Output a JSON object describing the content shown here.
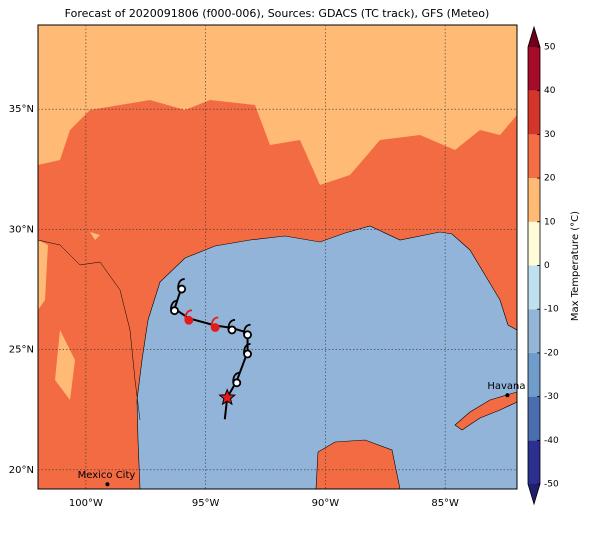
{
  "title": "Forecast of 2020091806 (f000-006), Sources: GDACS (TC track), GFS (Meteo)",
  "map": {
    "lon_range": [
      -102,
      -82
    ],
    "lat_range": [
      19.2,
      38.5
    ],
    "lon_ticks": [
      {
        "value": -100,
        "label": "100°W"
      },
      {
        "value": -95,
        "label": "95°W"
      },
      {
        "value": -90,
        "label": "90°W"
      },
      {
        "value": -85,
        "label": "85°W"
      }
    ],
    "lat_ticks": [
      {
        "value": 35,
        "label": "35°N"
      },
      {
        "value": 30,
        "label": "30°N"
      },
      {
        "value": 25,
        "label": "25°N"
      },
      {
        "value": 20,
        "label": "20°N"
      }
    ],
    "grid": true
  },
  "cities": [
    {
      "name": "Havana",
      "lon": -82.4,
      "lat": 23.1
    },
    {
      "name": "Mexico City",
      "lon": -99.1,
      "lat": 19.4
    }
  ],
  "track": [
    {
      "lon": -94.2,
      "lat": 22.1,
      "kind": "track"
    },
    {
      "lon": -94.1,
      "lat": 23.0,
      "kind": "current"
    },
    {
      "lon": -93.7,
      "lat": 23.7,
      "kind": "storm"
    },
    {
      "lon": -93.25,
      "lat": 24.9,
      "kind": "storm"
    },
    {
      "lon": -93.25,
      "lat": 25.7,
      "kind": "storm"
    },
    {
      "lon": -93.9,
      "lat": 25.9,
      "kind": "storm"
    },
    {
      "lon": -94.6,
      "lat": 26.0,
      "kind": "hurricane"
    },
    {
      "lon": -95.7,
      "lat": 26.3,
      "kind": "hurricane"
    },
    {
      "lon": -96.3,
      "lat": 26.7,
      "kind": "storm"
    },
    {
      "lon": -96.0,
      "lat": 27.6,
      "kind": "storm"
    }
  ],
  "colorbar": {
    "label": "Max Temperature (°C)",
    "lim": [
      -50,
      50
    ],
    "ticks": [
      50,
      40,
      30,
      20,
      10,
      0,
      -10,
      -20,
      -30,
      -40,
      -50
    ],
    "colors": [
      "#2c2f8f",
      "#4a6db0",
      "#6f9ccb",
      "#93b5d8",
      "#bfe0ee",
      "#fffbd8",
      "#ffbb75",
      "#f46d43",
      "#d4352b",
      "#a60b2a"
    ],
    "under": "#1f1f6e",
    "over": "#6e0019"
  }
}
